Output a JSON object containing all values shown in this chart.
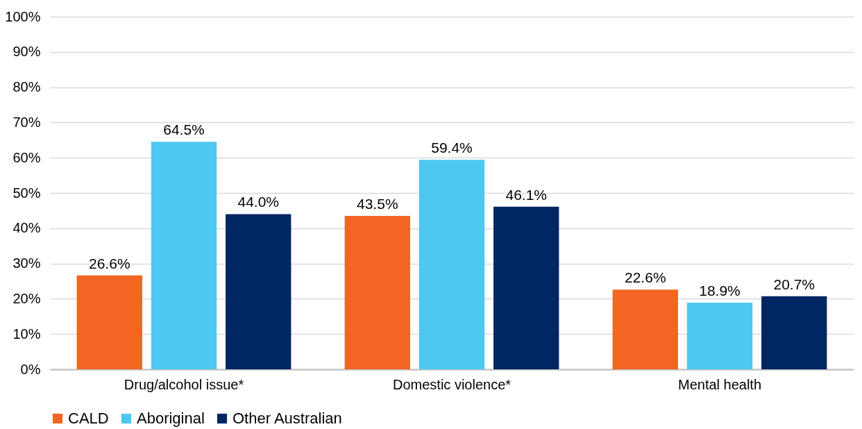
{
  "chart_data": {
    "type": "bar",
    "categories": [
      "Drug/alcohol issue*",
      "Domestic violence*",
      "Mental health"
    ],
    "series": [
      {
        "name": "CALD",
        "color": "#f26522",
        "values": [
          26.6,
          43.5,
          22.6
        ],
        "value_labels": [
          "26.6%",
          "43.5%",
          "22.6%"
        ]
      },
      {
        "name": "Aboriginal",
        "color": "#4ec8f0",
        "values": [
          64.5,
          59.4,
          18.9
        ],
        "value_labels": [
          "64.5%",
          "59.4%",
          "18.9%"
        ]
      },
      {
        "name": "Other Australian",
        "color": "#002664",
        "values": [
          44.0,
          46.1,
          20.7
        ],
        "value_labels": [
          "44.0%",
          "46.1%",
          "20.7%"
        ]
      }
    ],
    "ylim": [
      0,
      100
    ],
    "yticks": [
      {
        "value": 0,
        "label": "0%"
      },
      {
        "value": 10,
        "label": "10%"
      },
      {
        "value": 20,
        "label": "20%"
      },
      {
        "value": 30,
        "label": "30%"
      },
      {
        "value": 40,
        "label": "40%"
      },
      {
        "value": 50,
        "label": "50%"
      },
      {
        "value": 60,
        "label": "60%"
      },
      {
        "value": 70,
        "label": "70%"
      },
      {
        "value": 80,
        "label": "80%"
      },
      {
        "value": 90,
        "label": "90%"
      },
      {
        "value": 100,
        "label": "100%"
      }
    ],
    "grid": "y",
    "legend": "bottom"
  }
}
